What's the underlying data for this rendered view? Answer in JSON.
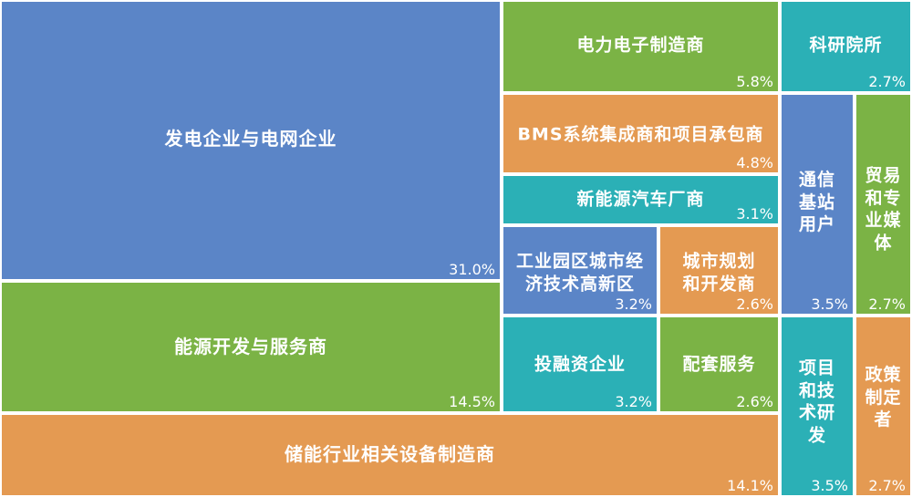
{
  "chart_data": {
    "type": "treemap",
    "unit": "%",
    "colors": {
      "blue": "#5b85c7",
      "green": "#7bb345",
      "orange": "#e49a52",
      "teal": "#2bb0b6"
    },
    "items": [
      {
        "id": "power-gen-grid",
        "name": "发电企业与电网企业",
        "lines": [
          "发电企业与电网企业"
        ],
        "value": 31.0,
        "label": "31.0%",
        "color": "blue"
      },
      {
        "id": "energy-dev",
        "name": "能源开发与服务商",
        "lines": [
          "能源开发与服务商"
        ],
        "value": 14.5,
        "label": "14.5%",
        "color": "green"
      },
      {
        "id": "storage-equip",
        "name": "储能行业相关设备制造商",
        "lines": [
          "储能行业相关设备制造商"
        ],
        "value": 14.1,
        "label": "14.1%",
        "color": "orange"
      },
      {
        "id": "power-electronics",
        "name": "电力电子制造商",
        "lines": [
          "电力电子制造商"
        ],
        "value": 5.8,
        "label": "5.8%",
        "color": "green"
      },
      {
        "id": "bms",
        "name": "BMS系统集成商和项目承包商",
        "lines": [
          "BMS系统集成商和项目承包商"
        ],
        "value": 4.8,
        "label": "4.8%",
        "color": "orange"
      },
      {
        "id": "nev",
        "name": "新能源汽车厂商",
        "lines": [
          "新能源汽车厂商"
        ],
        "value": 3.1,
        "label": "3.1%",
        "color": "teal"
      },
      {
        "id": "industrial-park",
        "name": "工业园区城市经济技术高新区",
        "lines": [
          "工业园区城市经",
          "济技术高新区"
        ],
        "value": 3.2,
        "label": "3.2%",
        "color": "blue"
      },
      {
        "id": "urban-planning",
        "name": "城市规划和开发商",
        "lines": [
          "城市规划",
          "和开发商"
        ],
        "value": 2.6,
        "label": "2.6%",
        "color": "orange"
      },
      {
        "id": "investment",
        "name": "投融资企业",
        "lines": [
          "投融资企业"
        ],
        "value": 3.2,
        "label": "3.2%",
        "color": "teal"
      },
      {
        "id": "support-services",
        "name": "配套服务",
        "lines": [
          "配套服务"
        ],
        "value": 2.6,
        "label": "2.6%",
        "color": "green"
      },
      {
        "id": "research-institutes",
        "name": "科研院所",
        "lines": [
          "科研院所"
        ],
        "value": 2.7,
        "label": "2.7%",
        "color": "teal"
      },
      {
        "id": "telecom-base-station",
        "name": "通信基站用户",
        "lines": [
          "通信",
          "基站",
          "用户"
        ],
        "value": 3.5,
        "label": "3.5%",
        "color": "blue"
      },
      {
        "id": "trade-media",
        "name": "贸易和专业媒体",
        "lines": [
          "贸易",
          "和专",
          "业媒",
          "体"
        ],
        "value": 2.7,
        "label": "2.7%",
        "color": "green"
      },
      {
        "id": "project-tech-rd",
        "name": "项目和技术研发",
        "lines": [
          "项目",
          "和技",
          "术研",
          "发"
        ],
        "value": 3.5,
        "label": "3.5%",
        "color": "teal"
      },
      {
        "id": "policy-makers",
        "name": "政策制定者",
        "lines": [
          "政策",
          "制定",
          "者"
        ],
        "value": 2.7,
        "label": "2.7%",
        "color": "orange"
      }
    ]
  }
}
